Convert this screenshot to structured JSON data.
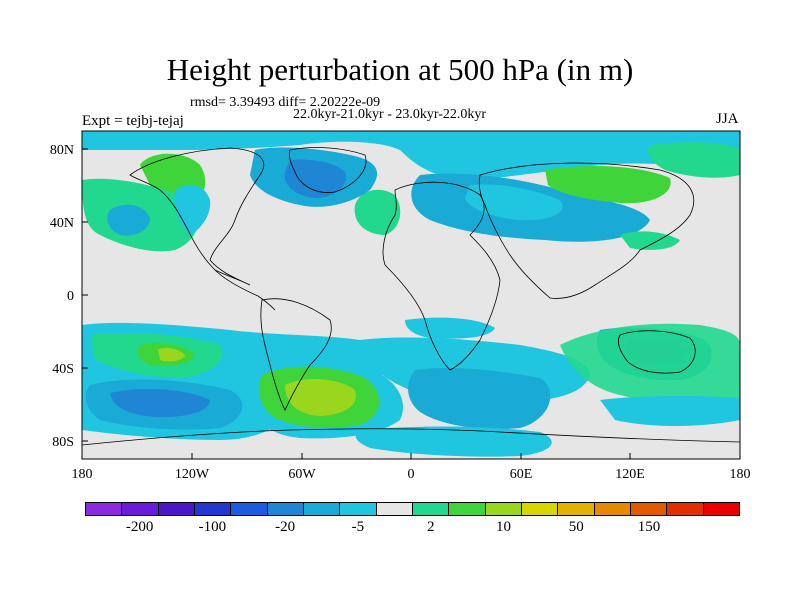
{
  "title": "Height perturbation at 500 hPa (in m)",
  "rmsd_line": "rmsd= 3.39493 diff= 2.20222e-09",
  "period_line": "22.0kyr-21.0kyr - 23.0kyr-22.0kyr",
  "experiment": "Expt = tejbj-tejaj",
  "season": "JJA",
  "axes": {
    "lat_ticks": [
      "80N",
      "40N",
      "0",
      "40S",
      "80S"
    ],
    "lon_ticks": [
      "180",
      "120W",
      "60W",
      "0",
      "60E",
      "120E",
      "180"
    ]
  },
  "colorbar": {
    "colors": [
      "#8a2be2",
      "#6a1cd8",
      "#4b17c9",
      "#2438d0",
      "#1c5ce0",
      "#1f86d6",
      "#1aaad6",
      "#20c6e0",
      "#e6e6e6",
      "#22d88f",
      "#3fd43a",
      "#9bd61e",
      "#d6d600",
      "#e3b200",
      "#e58a00",
      "#e25a00",
      "#e02f00",
      "#e80000"
    ],
    "labels": [
      "-200",
      "-100",
      "-20",
      "-5",
      "2",
      "10",
      "50",
      "150"
    ]
  },
  "colors": {
    "land_outline": "#000000",
    "ocean_bg": "#e6e6e6",
    "cyan": "#20c6e0",
    "light_blue": "#1aaad6",
    "blue": "#1f86d6",
    "green_teal": "#22d88f",
    "green": "#3fd43a",
    "yellow_green": "#9bd61e"
  }
}
